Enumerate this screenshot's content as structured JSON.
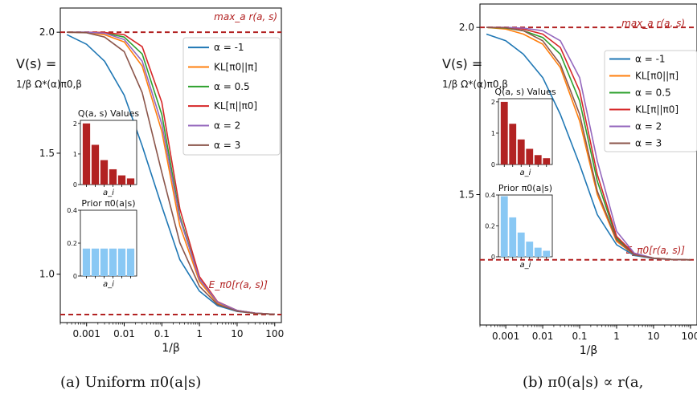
{
  "colors": {
    "red_dashed": "#b22222",
    "inset_red": "#b22222",
    "inset_blue": "#89c8f4",
    "series": [
      "#1f77b4",
      "#ff7f0e",
      "#2ca02c",
      "#d62728",
      "#9467bd",
      "#8c564b"
    ]
  },
  "chart_data": [
    {
      "type": "line",
      "caption": "(a) Uniform π0(a|s)",
      "ylabel_line1": "V(s) =",
      "ylabel_line2": "1/β Ω*(α)π0,β",
      "xlabel": "1/β",
      "xscale": "log",
      "xlim": [
        0.0002,
        150
      ],
      "ylim": [
        0.8,
        2.1
      ],
      "xticks": [
        {
          "v": 0.001,
          "label": "0.001"
        },
        {
          "v": 0.01,
          "label": "0.01"
        },
        {
          "v": 0.1,
          "label": "0.1"
        },
        {
          "v": 1,
          "label": "1"
        },
        {
          "v": 10,
          "label": "10"
        },
        {
          "v": 100,
          "label": "100"
        }
      ],
      "yticks": [
        {
          "v": 2.0,
          "label": "2.0"
        },
        {
          "v": 1.5,
          "label": "1.5"
        },
        {
          "v": 1.0,
          "label": "1.0"
        }
      ],
      "hlines": [
        {
          "y": 2.0,
          "label": "max_a r(a, s)"
        },
        {
          "y": 0.833,
          "label": "E_π0[r(a, s)]"
        }
      ],
      "legend_position": "top-right",
      "series": [
        {
          "name": "α = -1",
          "x": [
            0.0003,
            0.001,
            0.003,
            0.01,
            0.03,
            0.1,
            0.3,
            1,
            3,
            10,
            30,
            100
          ],
          "y": [
            1.99,
            1.95,
            1.88,
            1.74,
            1.53,
            1.28,
            1.06,
            0.93,
            0.87,
            0.846,
            0.838,
            0.834
          ]
        },
        {
          "name": "KL[π0||π]",
          "x": [
            0.0003,
            0.001,
            0.003,
            0.01,
            0.03,
            0.1,
            0.3,
            1,
            3,
            10,
            30,
            100
          ],
          "y": [
            2.0,
            1.999,
            1.99,
            1.96,
            1.86,
            1.59,
            1.2,
            0.97,
            0.88,
            0.848,
            0.838,
            0.834
          ]
        },
        {
          "name": "α = 0.5",
          "x": [
            0.0003,
            0.001,
            0.003,
            0.01,
            0.03,
            0.1,
            0.3,
            1,
            3,
            10,
            30,
            100
          ],
          "y": [
            2.0,
            2.0,
            1.997,
            1.98,
            1.91,
            1.66,
            1.24,
            0.98,
            0.885,
            0.85,
            0.839,
            0.834
          ]
        },
        {
          "name": "KL[π||π0]",
          "x": [
            0.0003,
            0.001,
            0.003,
            0.01,
            0.03,
            0.1,
            0.3,
            1,
            3,
            10,
            30,
            100
          ],
          "y": [
            2.0,
            2.0,
            1.999,
            1.99,
            1.94,
            1.71,
            1.27,
            0.99,
            0.887,
            0.85,
            0.839,
            0.834
          ]
        },
        {
          "name": "α = 2",
          "x": [
            0.0003,
            0.001,
            0.003,
            0.01,
            0.03,
            0.1,
            0.3,
            1,
            3,
            10,
            30,
            100
          ],
          "y": [
            2.0,
            2.0,
            1.996,
            1.97,
            1.88,
            1.62,
            1.23,
            0.98,
            0.885,
            0.85,
            0.839,
            0.834
          ]
        },
        {
          "name": "α = 3",
          "x": [
            0.0003,
            0.001,
            0.003,
            0.01,
            0.03,
            0.1,
            0.3,
            1,
            3,
            10,
            30,
            100
          ],
          "y": [
            2.0,
            1.998,
            1.98,
            1.92,
            1.75,
            1.42,
            1.13,
            0.95,
            0.875,
            0.847,
            0.838,
            0.834
          ]
        }
      ],
      "insets": [
        {
          "title": "Q(a, s) Values",
          "xlabel": "a_i",
          "ylim": [
            0,
            2.1
          ],
          "yticks": [
            {
              "v": 0,
              "label": "0"
            },
            {
              "v": 1,
              "label": "1"
            },
            {
              "v": 2,
              "label": "2"
            }
          ],
          "values": [
            2.0,
            1.3,
            0.8,
            0.5,
            0.3,
            0.2
          ],
          "color": "red"
        },
        {
          "title": "Prior π0(a|s)",
          "xlabel": "a_i",
          "ylim": [
            0,
            0.4
          ],
          "yticks": [
            {
              "v": 0,
              "label": "0"
            },
            {
              "v": 0.2,
              "label": "0.2"
            },
            {
              "v": 0.4,
              "label": "0.4"
            }
          ],
          "values": [
            0.167,
            0.167,
            0.167,
            0.167,
            0.167,
            0.167
          ],
          "color": "blue"
        }
      ]
    },
    {
      "type": "line",
      "caption": "(b) π0(a|s) ∝ r(a,",
      "ylabel_line1": "V(s) =",
      "ylabel_line2": "1/β Ω*(α)π0,β",
      "xlabel": "1/β",
      "xscale": "log",
      "xlim": [
        0.0002,
        150
      ],
      "ylim": [
        1.11,
        2.07
      ],
      "xticks": [
        {
          "v": 0.001,
          "label": "0.001"
        },
        {
          "v": 0.01,
          "label": "0.01"
        },
        {
          "v": 0.1,
          "label": "0.1"
        },
        {
          "v": 1,
          "label": "1"
        },
        {
          "v": 10,
          "label": "10"
        },
        {
          "v": 100,
          "label": "100"
        }
      ],
      "yticks": [
        {
          "v": 2.0,
          "label": "2.0"
        },
        {
          "v": 1.5,
          "label": "1.5"
        }
      ],
      "hlines": [
        {
          "y": 2.0,
          "label": "max_a r(a, s)"
        },
        {
          "y": 1.305,
          "label": "E_π0[r(a, s)]"
        }
      ],
      "legend_position": "top-right",
      "series": [
        {
          "name": "α = -1",
          "x": [
            0.0003,
            0.001,
            0.003,
            0.01,
            0.03,
            0.1,
            0.3,
            1,
            3,
            10,
            30,
            100
          ],
          "y": [
            1.98,
            1.96,
            1.92,
            1.85,
            1.74,
            1.59,
            1.44,
            1.35,
            1.318,
            1.309,
            1.306,
            1.305
          ]
        },
        {
          "name": "KL[π0||π]",
          "x": [
            0.0003,
            0.001,
            0.003,
            0.01,
            0.03,
            0.1,
            0.3,
            1,
            3,
            10,
            30,
            100
          ],
          "y": [
            2.0,
            1.995,
            1.98,
            1.95,
            1.88,
            1.72,
            1.5,
            1.36,
            1.32,
            1.31,
            1.306,
            1.305
          ]
        },
        {
          "name": "α = 0.5",
          "x": [
            0.0003,
            0.001,
            0.003,
            0.01,
            0.03,
            0.1,
            0.3,
            1,
            3,
            10,
            30,
            100
          ],
          "y": [
            2.0,
            1.998,
            1.99,
            1.97,
            1.92,
            1.78,
            1.54,
            1.37,
            1.322,
            1.31,
            1.306,
            1.305
          ]
        },
        {
          "name": "KL[π||π0]",
          "x": [
            0.0003,
            0.001,
            0.003,
            0.01,
            0.03,
            0.1,
            0.3,
            1,
            3,
            10,
            30,
            100
          ],
          "y": [
            2.0,
            2.0,
            1.995,
            1.98,
            1.94,
            1.81,
            1.56,
            1.375,
            1.323,
            1.31,
            1.306,
            1.305
          ]
        },
        {
          "name": "α = 2",
          "x": [
            0.0003,
            0.001,
            0.003,
            0.01,
            0.03,
            0.1,
            0.3,
            1,
            3,
            10,
            30,
            100
          ],
          "y": [
            2.0,
            2.0,
            1.998,
            1.99,
            1.96,
            1.85,
            1.6,
            1.39,
            1.325,
            1.31,
            1.306,
            1.305
          ]
        },
        {
          "name": "α = 3",
          "x": [
            0.0003,
            0.001,
            0.003,
            0.01,
            0.03,
            0.1,
            0.3,
            1,
            3,
            10,
            30,
            100
          ],
          "y": [
            2.0,
            1.999,
            1.99,
            1.96,
            1.89,
            1.74,
            1.51,
            1.365,
            1.32,
            1.31,
            1.306,
            1.305
          ]
        }
      ],
      "insets": [
        {
          "title": "Q(a, s) Values",
          "xlabel": "a_i",
          "ylim": [
            0,
            2.1
          ],
          "yticks": [
            {
              "v": 0,
              "label": "0"
            },
            {
              "v": 1,
              "label": "1"
            },
            {
              "v": 2,
              "label": "2"
            }
          ],
          "values": [
            2.0,
            1.3,
            0.8,
            0.5,
            0.3,
            0.2
          ],
          "color": "red"
        },
        {
          "title": "Prior π0(a|s)",
          "xlabel": "a_i",
          "ylim": [
            0,
            0.4
          ],
          "yticks": [
            {
              "v": 0,
              "label": "0"
            },
            {
              "v": 0.2,
              "label": "0.2"
            },
            {
              "v": 0.4,
              "label": "0.4"
            }
          ],
          "values": [
            0.392,
            0.255,
            0.157,
            0.098,
            0.059,
            0.039
          ],
          "color": "blue"
        }
      ]
    }
  ]
}
